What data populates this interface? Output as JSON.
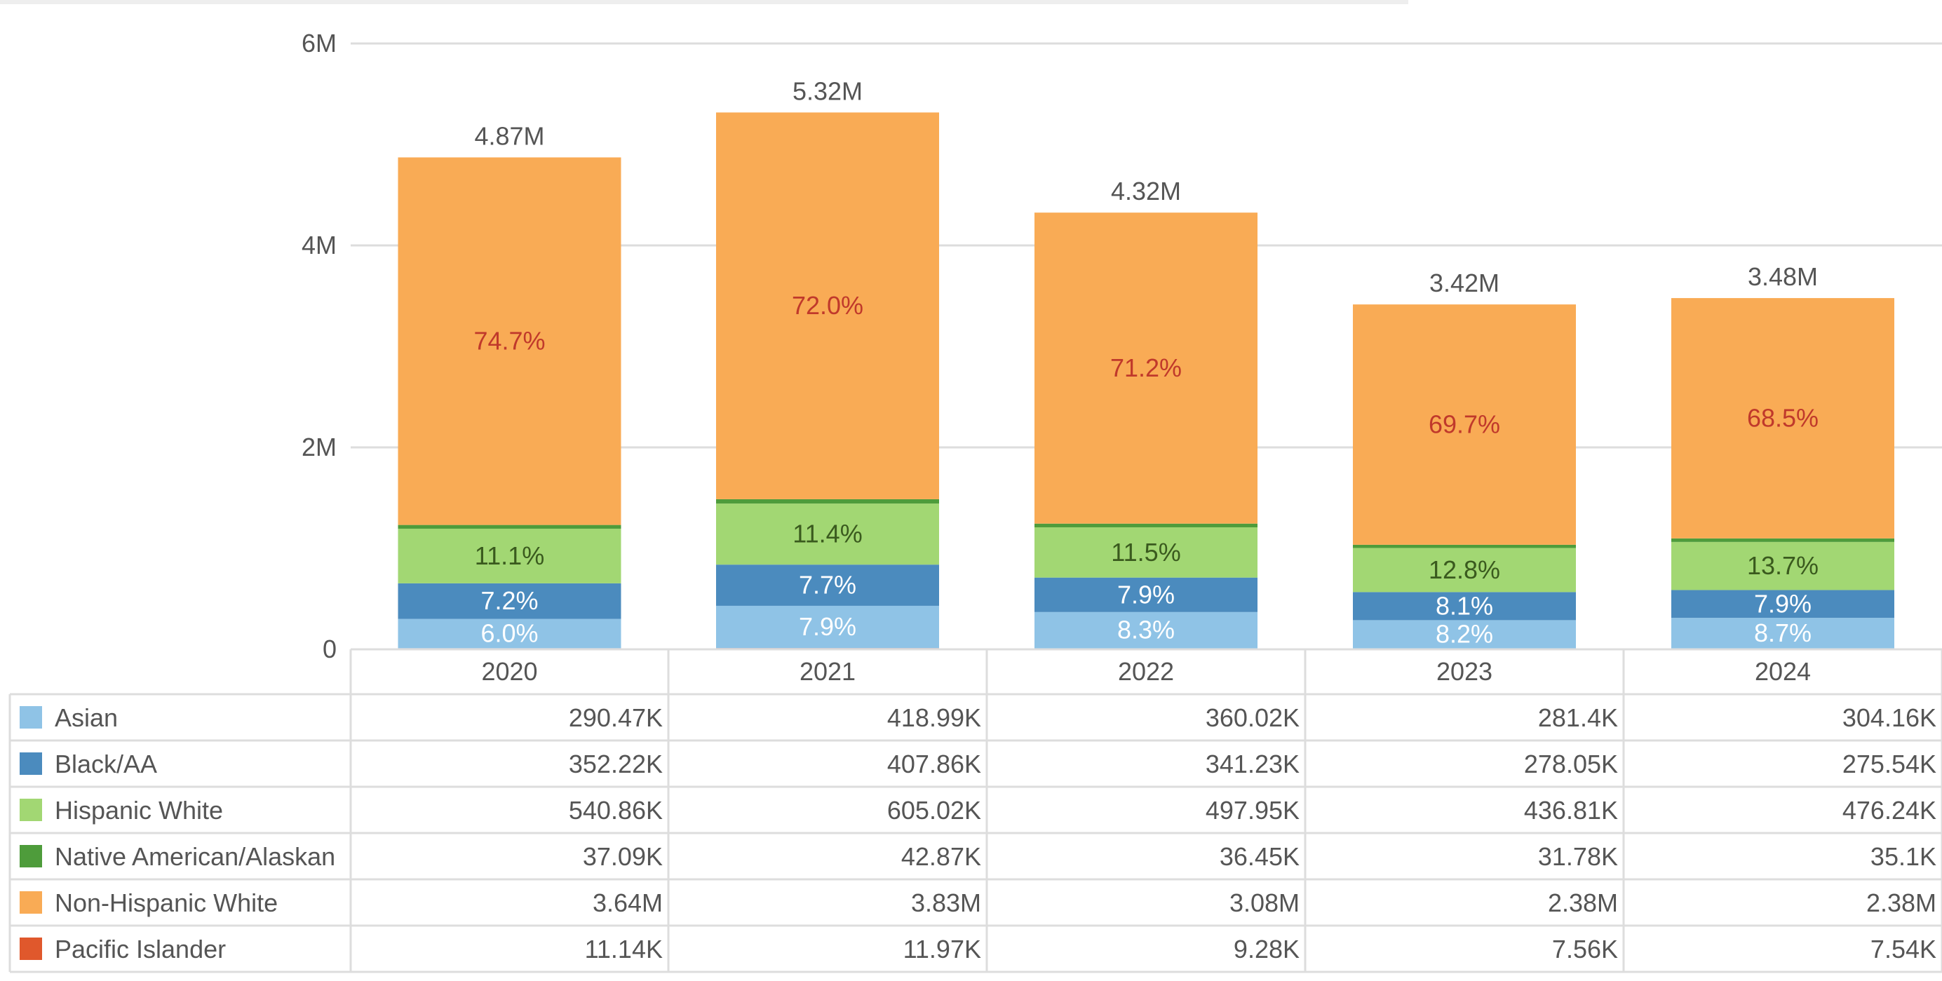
{
  "chart_data": {
    "type": "bar",
    "stacked": true,
    "categories": [
      "2020",
      "2021",
      "2022",
      "2023",
      "2024"
    ],
    "y_ticks": [
      "0",
      "2M",
      "4M",
      "6M"
    ],
    "ylim": [
      0,
      6000000
    ],
    "totals": [
      4870000,
      5320000,
      4320000,
      3420000,
      3480000
    ],
    "total_labels": [
      "4.87M",
      "5.32M",
      "4.32M",
      "3.42M",
      "3.48M"
    ],
    "series": [
      {
        "name": "Asian",
        "color": "#8fc3e6",
        "label_color": "#ffffff",
        "values": [
          290470,
          418990,
          360020,
          281400,
          304160
        ],
        "table_labels": [
          "290.47K",
          "418.99K",
          "360.02K",
          "281.4K",
          "304.16K"
        ],
        "pct_labels": [
          "6.0%",
          "7.9%",
          "8.3%",
          "8.2%",
          "8.7%"
        ]
      },
      {
        "name": "Black/AA",
        "color": "#4b8bbe",
        "label_color": "#ffffff",
        "values": [
          352220,
          407860,
          341230,
          278050,
          275540
        ],
        "table_labels": [
          "352.22K",
          "407.86K",
          "341.23K",
          "278.05K",
          "275.54K"
        ],
        "pct_labels": [
          "7.2%",
          "7.7%",
          "7.9%",
          "8.1%",
          "7.9%"
        ]
      },
      {
        "name": "Hispanic White",
        "color": "#a2d773",
        "label_color": "#3a5a1e",
        "values": [
          540860,
          605020,
          497950,
          436810,
          476240
        ],
        "table_labels": [
          "540.86K",
          "605.02K",
          "497.95K",
          "436.81K",
          "476.24K"
        ],
        "pct_labels": [
          "11.1%",
          "11.4%",
          "11.5%",
          "12.8%",
          "13.7%"
        ]
      },
      {
        "name": "Native American/Alaskan",
        "color": "#4e9c3b",
        "label_color": "#ffffff",
        "values": [
          37090,
          42870,
          36450,
          31780,
          35100
        ],
        "table_labels": [
          "37.09K",
          "42.87K",
          "36.45K",
          "31.78K",
          "35.1K"
        ],
        "pct_labels": []
      },
      {
        "name": "Non-Hispanic White",
        "color": "#f9ab55",
        "label_color": "#c0392b",
        "values": [
          3640000,
          3830000,
          3080000,
          2380000,
          2380000
        ],
        "table_labels": [
          "3.64M",
          "3.83M",
          "3.08M",
          "2.38M",
          "2.38M"
        ],
        "pct_labels": [
          "74.7%",
          "72.0%",
          "71.2%",
          "69.7%",
          "68.5%"
        ]
      },
      {
        "name": "Pacific Islander",
        "color": "#e0582c",
        "label_color": "#ffffff",
        "values": [
          11140,
          11970,
          9280,
          7560,
          7540
        ],
        "table_labels": [
          "11.14K",
          "11.97K",
          "9.28K",
          "7.56K",
          "7.54K"
        ],
        "pct_labels": []
      }
    ]
  }
}
